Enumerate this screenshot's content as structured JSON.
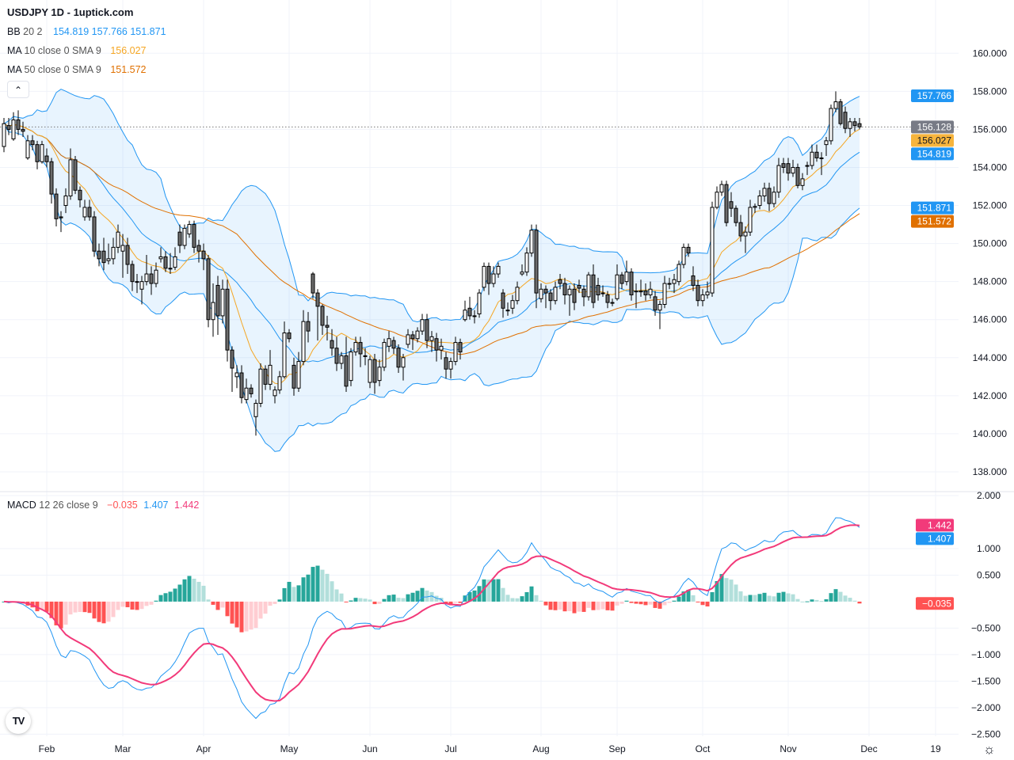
{
  "header": {
    "title": "USDJPY 1D - 1uptick.com",
    "collapse_icon": "chevron-up-icon"
  },
  "legend": {
    "bb": {
      "name": "BB",
      "params": "20 2",
      "basis": "154.819",
      "upper": "157.766",
      "lower": "151.871",
      "color": "#2196f3"
    },
    "ma10": {
      "name": "MA",
      "params": "10 close 0 SMA 9",
      "value": "156.027",
      "color": "#f5a623"
    },
    "ma50": {
      "name": "MA",
      "params": "50 close 0 SMA 9",
      "value": "151.572",
      "color": "#e07000"
    },
    "macd": {
      "name": "MACD",
      "params": "12 26 close 9",
      "hist": "−0.035",
      "macd": "1.407",
      "signal": "1.442",
      "hist_color": "#ff5252",
      "macd_color": "#2196f3",
      "signal_color": "#f23a7a"
    }
  },
  "price_tags": [
    {
      "label": "157.766",
      "value": 157.766,
      "bg": "#2196f3",
      "fg": "#ffffff"
    },
    {
      "label": "156.128",
      "value": 156.128,
      "bg": "#787b86",
      "fg": "#ffffff"
    },
    {
      "label": "156.027",
      "value": 156.027,
      "bg": "#f7b53d",
      "fg": "#131722"
    },
    {
      "label": "154.819",
      "value": 154.819,
      "bg": "#2196f3",
      "fg": "#ffffff"
    },
    {
      "label": "151.871",
      "value": 151.871,
      "bg": "#2196f3",
      "fg": "#ffffff"
    },
    {
      "label": "151.572",
      "value": 151.572,
      "bg": "#e07000",
      "fg": "#ffffff"
    }
  ],
  "macd_tags": [
    {
      "label": "1.442",
      "value": 1.442,
      "bg": "#f23a7a",
      "fg": "#ffffff"
    },
    {
      "label": "1.407",
      "value": 1.407,
      "bg": "#2196f3",
      "fg": "#ffffff"
    },
    {
      "label": "−0.035",
      "value": -0.035,
      "bg": "#ff5252",
      "fg": "#ffffff"
    }
  ],
  "footer": {
    "logo": "TV",
    "settings_icon": "gear-icon"
  },
  "chart_data": {
    "type": "candlestick",
    "symbol": "USDJPY",
    "interval": "1D",
    "grid": true,
    "price_axis": {
      "ylim": [
        137.0,
        162.8
      ],
      "ticks": [
        "160.000",
        "158.000",
        "156.000",
        "154.000",
        "152.000",
        "150.000",
        "148.000",
        "146.000",
        "144.000",
        "142.000",
        "140.000",
        "138.000"
      ],
      "tick_values": [
        160,
        158,
        156,
        154,
        152,
        150,
        148,
        146,
        144,
        142,
        140,
        138
      ]
    },
    "macd_axis": {
      "ylim": [
        -2.54,
        2.06
      ],
      "ticks": [
        "2.000",
        "1.000",
        "0.500",
        "−0.500",
        "−1.000",
        "−1.500",
        "−2.000",
        "−2.500"
      ],
      "tick_values": [
        2,
        1,
        0.5,
        -0.5,
        -1,
        -1.5,
        -2,
        -2.5
      ]
    },
    "x_labels": [
      "Feb",
      "Mar",
      "Apr",
      "May",
      "Jun",
      "Jul",
      "Aug",
      "Sep",
      "Oct",
      "Nov",
      "Dec",
      "19"
    ],
    "x_label_candle_index": [
      9,
      25,
      42,
      60,
      77,
      94,
      113,
      129,
      147,
      165,
      182,
      196
    ],
    "last_close": 156.128,
    "colors": {
      "up_body": "#ffffff",
      "down_body": "#6b6b6b",
      "outline": "#000000",
      "bb": "#2196f3",
      "ma10": "#f5a623",
      "ma50": "#e07000",
      "macd": "#2196f3",
      "signal": "#f23a7a",
      "hist_up_strong": "#26a69a",
      "hist_up_weak": "#b2dfdb",
      "hist_down_strong": "#ff5252",
      "hist_down_weak": "#ffcdd2"
    },
    "candles_ohlc": [
      [
        155.1,
        156.6,
        154.8,
        156.3
      ],
      [
        156.2,
        156.6,
        155.7,
        156.0
      ],
      [
        155.5,
        156.9,
        155.4,
        156.5
      ],
      [
        156.5,
        157.0,
        155.7,
        156.0
      ],
      [
        156.0,
        156.4,
        155.6,
        155.9
      ],
      [
        154.5,
        155.7,
        154.4,
        155.4
      ],
      [
        155.4,
        155.7,
        154.9,
        155.2
      ],
      [
        155.2,
        155.4,
        153.9,
        154.3
      ],
      [
        154.3,
        155.4,
        154.2,
        155.2
      ],
      [
        154.6,
        155.0,
        154.0,
        154.3
      ],
      [
        154.3,
        154.5,
        152.1,
        152.6
      ],
      [
        152.6,
        152.9,
        150.9,
        151.3
      ],
      [
        151.4,
        151.7,
        150.6,
        151.35
      ],
      [
        152.0,
        152.9,
        151.6,
        152.5
      ],
      [
        152.5,
        155.0,
        152.3,
        154.4
      ],
      [
        154.4,
        154.6,
        152.6,
        152.8
      ],
      [
        152.8,
        153.0,
        151.9,
        152.3
      ],
      [
        151.4,
        152.3,
        151.2,
        151.9
      ],
      [
        151.9,
        152.3,
        151.2,
        151.4
      ],
      [
        151.4,
        151.7,
        149.3,
        149.6
      ],
      [
        149.6,
        150.0,
        148.8,
        149.2
      ],
      [
        149.6,
        150.3,
        148.6,
        149.0
      ],
      [
        149.1,
        150.0,
        148.9,
        149.2
      ],
      [
        149.2,
        150.3,
        148.9,
        149.8
      ],
      [
        149.8,
        151.0,
        149.5,
        150.6
      ],
      [
        149.6,
        150.5,
        148.2,
        149.9
      ],
      [
        149.9,
        150.3,
        148.4,
        148.9
      ],
      [
        148.9,
        149.1,
        147.5,
        148.0
      ],
      [
        148.0,
        148.4,
        147.4,
        148.0
      ],
      [
        147.6,
        148.3,
        146.8,
        148.0
      ],
      [
        148.0,
        149.4,
        147.8,
        148.4
      ],
      [
        148.4,
        148.8,
        147.3,
        147.9
      ],
      [
        147.9,
        149.0,
        147.7,
        148.6
      ],
      [
        149.2,
        149.8,
        149.0,
        149.3
      ],
      [
        149.3,
        149.6,
        148.5,
        148.7
      ],
      [
        148.7,
        149.5,
        148.4,
        148.7
      ],
      [
        148.75,
        149.8,
        148.6,
        149.3
      ],
      [
        150.6,
        151.0,
        149.5,
        149.9
      ],
      [
        149.9,
        151.0,
        149.7,
        150.8
      ],
      [
        150.5,
        151.2,
        150.3,
        151.0
      ],
      [
        151.0,
        151.2,
        149.5,
        149.8
      ],
      [
        149.9,
        150.2,
        149.0,
        149.6
      ],
      [
        149.6,
        150.0,
        148.6,
        149.2
      ],
      [
        149.2,
        149.4,
        145.6,
        146.0
      ],
      [
        146.0,
        147.9,
        145.1,
        146.9
      ],
      [
        147.8,
        148.3,
        145.2,
        146.2
      ],
      [
        146.2,
        148.1,
        145.8,
        147.6
      ],
      [
        147.6,
        148.1,
        143.8,
        144.4
      ],
      [
        144.4,
        144.6,
        142.2,
        143.45
      ],
      [
        143.0,
        143.6,
        142.4,
        143.2
      ],
      [
        143.2,
        143.6,
        141.6,
        141.9
      ],
      [
        141.8,
        142.9,
        141.6,
        142.4
      ],
      [
        142.4,
        142.6,
        141.9,
        142.1
      ],
      [
        140.9,
        141.8,
        139.9,
        141.6
      ],
      [
        141.6,
        143.7,
        141.4,
        143.4
      ],
      [
        143.4,
        143.6,
        142.3,
        142.6
      ],
      [
        142.6,
        144.4,
        142.3,
        143.6
      ],
      [
        142.0,
        142.5,
        141.6,
        142.3
      ],
      [
        142.3,
        143.3,
        142.1,
        143.0
      ],
      [
        143.0,
        145.9,
        142.9,
        145.3
      ],
      [
        145.3,
        145.5,
        144.8,
        145.0
      ],
      [
        143.6,
        144.0,
        142.0,
        142.4
      ],
      [
        142.4,
        144.3,
        142.2,
        143.8
      ],
      [
        143.8,
        146.5,
        143.6,
        145.9
      ],
      [
        145.9,
        146.4,
        144.8,
        145.4
      ],
      [
        148.4,
        148.5,
        147.1,
        147.4
      ],
      [
        147.4,
        147.6,
        144.9,
        146.7
      ],
      [
        146.7,
        146.8,
        145.2,
        145.7
      ],
      [
        145.7,
        146.2,
        144.9,
        145.6
      ],
      [
        144.9,
        145.5,
        144.1,
        144.5
      ],
      [
        144.5,
        145.1,
        143.3,
        143.7
      ],
      [
        143.7,
        144.3,
        143.4,
        144.1
      ],
      [
        144.1,
        145.1,
        142.2,
        142.5
      ],
      [
        142.8,
        144.5,
        142.5,
        144.3
      ],
      [
        144.3,
        145.1,
        144.1,
        144.8
      ],
      [
        144.8,
        145.1,
        143.5,
        144.2
      ],
      [
        144.1,
        144.5,
        143.6,
        144.1
      ],
      [
        142.7,
        144.1,
        142.4,
        143.9
      ],
      [
        143.9,
        144.2,
        142.1,
        142.7
      ],
      [
        142.8,
        143.9,
        142.5,
        143.5
      ],
      [
        143.5,
        145.0,
        143.3,
        144.8
      ],
      [
        144.6,
        145.4,
        144.3,
        145.0
      ],
      [
        144.9,
        145.1,
        144.2,
        144.5
      ],
      [
        144.5,
        144.7,
        143.2,
        143.5
      ],
      [
        143.5,
        144.2,
        142.8,
        144.0
      ],
      [
        144.7,
        145.5,
        144.5,
        145.2
      ],
      [
        145.2,
        145.4,
        144.4,
        145.0
      ],
      [
        145.0,
        145.6,
        144.8,
        145.4
      ],
      [
        145.4,
        146.3,
        145.2,
        146.0
      ],
      [
        146.0,
        146.3,
        144.5,
        144.9
      ],
      [
        144.9,
        145.4,
        144.3,
        145.1
      ],
      [
        145.0,
        145.3,
        143.8,
        144.4
      ],
      [
        144.4,
        145.0,
        143.9,
        144.6
      ],
      [
        144.0,
        144.3,
        142.9,
        143.4
      ],
      [
        143.4,
        144.0,
        142.9,
        143.8
      ],
      [
        143.8,
        145.1,
        143.6,
        144.8
      ],
      [
        144.8,
        145.0,
        143.9,
        144.3
      ],
      [
        146.0,
        147.0,
        145.9,
        146.5
      ],
      [
        146.6,
        147.2,
        146.0,
        146.2
      ],
      [
        146.2,
        146.5,
        145.8,
        146.2
      ],
      [
        146.3,
        147.6,
        146.1,
        147.4
      ],
      [
        147.7,
        149.0,
        147.5,
        148.8
      ],
      [
        148.8,
        149.0,
        147.3,
        147.9
      ],
      [
        147.9,
        148.8,
        147.7,
        148.4
      ],
      [
        148.4,
        149.0,
        148.2,
        148.8
      ],
      [
        147.4,
        147.6,
        146.1,
        146.6
      ],
      [
        146.5,
        146.9,
        146.2,
        146.5
      ],
      [
        146.6,
        147.3,
        146.3,
        147.0
      ],
      [
        147.0,
        148.0,
        146.8,
        147.7
      ],
      [
        148.4,
        148.9,
        148.3,
        148.5
      ],
      [
        148.5,
        149.8,
        148.3,
        149.5
      ],
      [
        149.5,
        151.0,
        149.3,
        150.7
      ],
      [
        150.7,
        151.0,
        146.6,
        147.4
      ],
      [
        147.1,
        147.9,
        146.9,
        147.6
      ],
      [
        147.6,
        147.8,
        146.6,
        147.4
      ],
      [
        147.4,
        147.6,
        146.5,
        147.0
      ],
      [
        147.0,
        148.0,
        146.8,
        147.7
      ],
      [
        148.1,
        148.4,
        147.6,
        147.9
      ],
      [
        147.9,
        148.2,
        146.8,
        147.3
      ],
      [
        147.3,
        147.8,
        146.2,
        147.6
      ],
      [
        147.6,
        147.9,
        146.5,
        146.9
      ],
      [
        147.8,
        148.1,
        147.4,
        147.65
      ],
      [
        147.6,
        147.8,
        146.7,
        147.2
      ],
      [
        147.2,
        148.5,
        147.0,
        148.35
      ],
      [
        148.35,
        148.9,
        146.6,
        146.9
      ],
      [
        147.8,
        148.2,
        147.0,
        147.3
      ],
      [
        147.4,
        147.8,
        147.2,
        147.4
      ],
      [
        147.3,
        147.5,
        146.6,
        146.9
      ],
      [
        146.9,
        147.1,
        146.7,
        146.9
      ],
      [
        147.1,
        148.9,
        147.0,
        148.35
      ],
      [
        148.35,
        148.5,
        147.6,
        147.9
      ],
      [
        148.0,
        149.1,
        147.8,
        148.5
      ],
      [
        148.5,
        148.7,
        147.0,
        147.3
      ],
      [
        147.5,
        147.9,
        146.6,
        147.5
      ],
      [
        147.5,
        148.1,
        147.2,
        147.5
      ],
      [
        147.5,
        147.9,
        147.0,
        147.3
      ],
      [
        147.3,
        148.0,
        147.1,
        147.6
      ],
      [
        147.2,
        147.5,
        146.2,
        146.5
      ],
      [
        146.5,
        147.0,
        145.5,
        146.8
      ],
      [
        146.8,
        148.3,
        146.6,
        147.9
      ],
      [
        147.9,
        148.2,
        147.6,
        147.9
      ],
      [
        147.9,
        148.4,
        147.4,
        148.1
      ],
      [
        148.0,
        149.1,
        147.8,
        148.9
      ],
      [
        148.9,
        150.0,
        148.7,
        149.8
      ],
      [
        149.8,
        150.0,
        149.3,
        149.5
      ],
      [
        148.3,
        148.8,
        147.5,
        147.8
      ],
      [
        147.8,
        148.1,
        146.7,
        147.0
      ],
      [
        147.0,
        147.6,
        146.7,
        147.3
      ],
      [
        147.3,
        148.0,
        147.1,
        147.45
      ],
      [
        147.4,
        152.2,
        147.2,
        151.9
      ],
      [
        151.9,
        153.0,
        151.8,
        152.7
      ],
      [
        152.7,
        153.3,
        152.5,
        153.1
      ],
      [
        153.1,
        153.3,
        150.9,
        151.1
      ],
      [
        152.2,
        152.7,
        151.4,
        151.85
      ],
      [
        151.85,
        152.0,
        150.9,
        151.1
      ],
      [
        151.1,
        151.5,
        150.1,
        150.4
      ],
      [
        150.4,
        150.9,
        149.5,
        150.6
      ],
      [
        150.6,
        152.3,
        150.4,
        151.9
      ],
      [
        151.9,
        152.1,
        151.6,
        151.95
      ],
      [
        152.0,
        152.8,
        151.8,
        152.5
      ],
      [
        152.5,
        153.2,
        152.2,
        152.9
      ],
      [
        152.9,
        153.2,
        151.7,
        152.1
      ],
      [
        152.1,
        153.0,
        151.9,
        152.7
      ],
      [
        152.7,
        154.5,
        152.4,
        154.1
      ],
      [
        154.2,
        154.5,
        153.7,
        154.0
      ],
      [
        154.2,
        154.5,
        153.3,
        153.7
      ],
      [
        153.7,
        154.4,
        153.5,
        154.0
      ],
      [
        154.0,
        154.2,
        152.9,
        153.05
      ],
      [
        153.05,
        153.7,
        152.8,
        153.4
      ],
      [
        154.1,
        154.3,
        153.6,
        154.1
      ],
      [
        154.1,
        155.2,
        153.9,
        154.8
      ],
      [
        154.8,
        155.2,
        154.3,
        154.5
      ],
      [
        154.5,
        154.8,
        153.6,
        154.5
      ],
      [
        155.2,
        155.6,
        154.6,
        155.4
      ],
      [
        155.4,
        157.3,
        155.2,
        157.1
      ],
      [
        157.1,
        158.0,
        156.9,
        157.45
      ],
      [
        157.45,
        157.6,
        156.2,
        156.3
      ],
      [
        156.9,
        157.2,
        155.8,
        156.05
      ],
      [
        156.05,
        156.6,
        155.6,
        156.4
      ],
      [
        156.4,
        156.6,
        155.9,
        156.2
      ],
      [
        156.3,
        156.6,
        156.0,
        156.13
      ]
    ]
  }
}
